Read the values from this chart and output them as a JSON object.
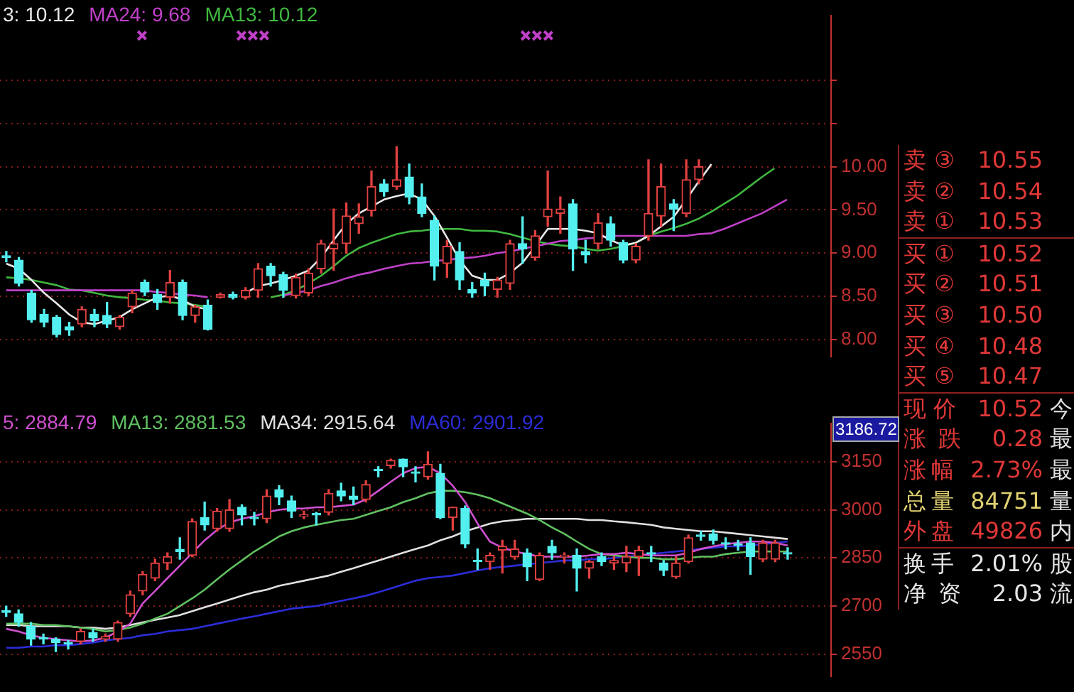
{
  "chart_data": [
    {
      "type": "candlestick",
      "categories": [
        null,
        null,
        null,
        null,
        null,
        null,
        null,
        null,
        null,
        null,
        null,
        null,
        null,
        null,
        null,
        null,
        null,
        null,
        null,
        null,
        null,
        null,
        null,
        null,
        null,
        null,
        null,
        null,
        null,
        null,
        null,
        null,
        null,
        null,
        null,
        null,
        null,
        null,
        null,
        null,
        null,
        null,
        null,
        null,
        null,
        null,
        null,
        null,
        null,
        null,
        null,
        null,
        null,
        null,
        null,
        null,
        null,
        null,
        null,
        null,
        null,
        null,
        null,
        null,
        null,
        null
      ],
      "ohlc": [
        [
          8.97,
          9.02,
          8.9,
          8.95
        ],
        [
          8.92,
          8.95,
          8.62,
          8.65
        ],
        [
          8.54,
          8.57,
          8.2,
          8.23
        ],
        [
          8.29,
          8.35,
          8.15,
          8.2
        ],
        [
          8.26,
          8.28,
          8.03,
          8.06
        ],
        [
          8.15,
          8.2,
          8.05,
          8.11
        ],
        [
          8.18,
          8.38,
          8.15,
          8.35
        ],
        [
          8.29,
          8.35,
          8.15,
          8.22
        ],
        [
          8.28,
          8.43,
          8.14,
          8.18
        ],
        [
          8.15,
          8.28,
          8.12,
          8.26
        ],
        [
          8.38,
          8.57,
          8.31,
          8.54
        ],
        [
          8.66,
          8.69,
          8.51,
          8.55
        ],
        [
          8.52,
          8.58,
          8.35,
          8.43
        ],
        [
          8.49,
          8.8,
          8.42,
          8.66
        ],
        [
          8.66,
          8.69,
          8.23,
          8.28
        ],
        [
          8.28,
          8.4,
          8.2,
          8.38
        ],
        [
          8.4,
          8.46,
          8.11,
          8.12
        ],
        [
          8.49,
          8.54,
          8.48,
          8.52
        ],
        [
          8.52,
          8.55,
          8.47,
          8.49
        ],
        [
          8.49,
          8.6,
          8.47,
          8.57
        ],
        [
          8.57,
          8.88,
          8.49,
          8.82
        ],
        [
          8.85,
          8.88,
          8.62,
          8.74
        ],
        [
          8.75,
          8.78,
          8.49,
          8.57
        ],
        [
          8.51,
          8.76,
          8.48,
          8.72
        ],
        [
          8.54,
          8.82,
          8.51,
          8.77
        ],
        [
          8.82,
          9.15,
          8.77,
          9.11
        ],
        [
          9.05,
          9.51,
          8.8,
          9.11
        ],
        [
          9.11,
          9.58,
          9.0,
          9.43
        ],
        [
          9.34,
          9.57,
          9.23,
          9.42
        ],
        [
          9.49,
          9.95,
          9.43,
          9.77
        ],
        [
          9.8,
          9.85,
          9.66,
          9.71
        ],
        [
          9.77,
          10.23,
          9.74,
          9.85
        ],
        [
          9.88,
          10.03,
          9.57,
          9.65
        ],
        [
          9.65,
          9.8,
          9.42,
          9.46
        ],
        [
          9.38,
          9.43,
          8.69,
          8.85
        ],
        [
          8.88,
          9.15,
          8.72,
          9.08
        ],
        [
          9.02,
          9.12,
          8.58,
          8.69
        ],
        [
          8.58,
          8.66,
          8.49,
          8.54
        ],
        [
          8.69,
          8.77,
          8.51,
          8.62
        ],
        [
          8.58,
          8.72,
          8.49,
          8.69
        ],
        [
          8.65,
          9.15,
          8.58,
          9.11
        ],
        [
          9.11,
          9.42,
          8.88,
          9.05
        ],
        [
          8.95,
          9.26,
          8.92,
          9.2
        ],
        [
          9.42,
          9.95,
          9.31,
          9.51
        ],
        [
          9.46,
          9.65,
          9.23,
          9.51
        ],
        [
          9.57,
          9.62,
          8.8,
          9.05
        ],
        [
          9.02,
          9.15,
          8.89,
          8.98
        ],
        [
          9.11,
          9.46,
          9.05,
          9.35
        ],
        [
          9.34,
          9.42,
          9.08,
          9.15
        ],
        [
          9.12,
          9.15,
          8.89,
          8.92
        ],
        [
          8.92,
          9.11,
          8.89,
          9.08
        ],
        [
          9.2,
          10.08,
          9.15,
          9.46
        ],
        [
          9.43,
          10.03,
          9.31,
          9.77
        ],
        [
          9.57,
          9.62,
          9.26,
          9.51
        ],
        [
          9.46,
          10.08,
          9.42,
          9.85
        ],
        [
          9.85,
          10.08,
          9.8,
          10.0
        ],
        null,
        null,
        null,
        null,
        null,
        null,
        null,
        null,
        null,
        null
      ],
      "series": [
        {
          "name": "3: 10.12",
          "type": "line",
          "color": "#e8e8e8",
          "values": [
            8.88,
            8.82,
            8.69,
            8.54,
            8.42,
            8.29,
            8.2,
            8.18,
            8.22,
            8.26,
            8.35,
            8.42,
            8.49,
            8.51,
            8.46,
            8.38,
            8.35,
            null,
            null,
            8.54,
            8.62,
            8.65,
            8.69,
            8.74,
            8.8,
            8.95,
            9.15,
            9.34,
            9.46,
            9.54,
            9.62,
            9.66,
            9.69,
            9.62,
            9.43,
            9.18,
            8.92,
            8.74,
            8.69,
            8.69,
            8.77,
            8.89,
            9.08,
            9.28,
            9.28,
            9.28,
            9.26,
            9.23,
            9.15,
            9.09,
            9.12,
            9.2,
            9.31,
            9.42,
            9.62,
            9.83,
            10.03,
            null,
            null,
            null,
            null,
            null,
            null,
            null,
            null,
            null
          ]
        },
        {
          "name": "MA24: 9.68",
          "type": "line",
          "color": "#c040c8",
          "values": [
            8.57,
            8.57,
            8.57,
            8.57,
            8.57,
            8.57,
            8.57,
            8.57,
            8.57,
            8.57,
            8.57,
            8.57,
            8.55,
            8.54,
            8.52,
            8.51,
            8.49,
            null,
            null,
            null,
            null,
            null,
            8.51,
            8.54,
            8.57,
            8.62,
            8.66,
            8.71,
            8.75,
            8.78,
            8.82,
            8.85,
            8.88,
            8.89,
            8.91,
            8.92,
            8.94,
            8.95,
            8.97,
            9.0,
            9.02,
            9.05,
            9.08,
            9.11,
            9.14,
            9.15,
            9.17,
            9.18,
            9.2,
            9.2,
            9.2,
            9.2,
            9.2,
            9.2,
            9.2,
            9.22,
            9.23,
            9.28,
            9.34,
            9.4,
            9.46,
            9.54,
            9.62,
            null,
            null,
            null
          ]
        },
        {
          "name": "MA13: 10.12",
          "type": "line",
          "color": "#40b840",
          "values": [
            8.72,
            8.71,
            8.69,
            8.66,
            8.63,
            8.58,
            8.57,
            8.54,
            8.51,
            8.49,
            8.48,
            8.46,
            8.45,
            8.43,
            8.42,
            8.4,
            8.38,
            null,
            null,
            null,
            null,
            8.49,
            8.52,
            8.57,
            8.65,
            8.74,
            8.85,
            8.97,
            9.06,
            9.12,
            9.17,
            9.22,
            9.25,
            9.26,
            9.28,
            9.28,
            9.28,
            9.26,
            9.26,
            9.25,
            9.22,
            9.18,
            9.14,
            9.11,
            9.09,
            9.08,
            9.05,
            9.03,
            9.05,
            9.08,
            9.12,
            9.2,
            9.25,
            9.29,
            9.34,
            9.4,
            9.48,
            9.57,
            9.66,
            9.77,
            9.88,
            9.98,
            null,
            null,
            null,
            null
          ]
        }
      ],
      "ylim": [
        7.8,
        11.75
      ],
      "yticks": [
        {
          "value": 8,
          "label": "8.00"
        },
        {
          "value": 8.5,
          "label": "8.50"
        },
        {
          "value": 9,
          "label": "9.00"
        },
        {
          "value": 9.5,
          "label": "9.50"
        },
        {
          "value": 10,
          "label": "10.00"
        },
        {
          "value": 10.5,
          "label": null
        },
        {
          "value": 11,
          "label": null
        }
      ],
      "grid": "y",
      "legend": "top left",
      "tick_labels": "y"
    },
    {
      "type": "candlestick",
      "categories": [
        null,
        null,
        null,
        null,
        null,
        null,
        null,
        null,
        null,
        null,
        null,
        null,
        null,
        null,
        null,
        null,
        null,
        null,
        null,
        null,
        null,
        null,
        null,
        null,
        null,
        null,
        null,
        null,
        null,
        null,
        null,
        null,
        null,
        null,
        null,
        null,
        null,
        null,
        null,
        null,
        null,
        null,
        null,
        null,
        null,
        null,
        null,
        null,
        null,
        null,
        null,
        null,
        null,
        null,
        null,
        null,
        null,
        null,
        null,
        null,
        null,
        null,
        null,
        null,
        null,
        null,
        null
      ],
      "ohlc": [
        [
          2686,
          2700,
          2668,
          2680
        ],
        [
          2676,
          2688,
          2637,
          2649
        ],
        [
          2637,
          2649,
          2578,
          2597
        ],
        [
          2601,
          2613,
          2582,
          2597
        ],
        [
          2597,
          2601,
          2558,
          2586
        ],
        [
          2586,
          2593,
          2566,
          2582
        ],
        [
          2590,
          2629,
          2582,
          2621
        ],
        [
          2617,
          2629,
          2590,
          2601
        ],
        [
          2597,
          2613,
          2590,
          2605
        ],
        [
          2597,
          2653,
          2590,
          2649
        ],
        [
          2676,
          2747,
          2668,
          2735
        ],
        [
          2747,
          2807,
          2735,
          2799
        ],
        [
          2787,
          2846,
          2779,
          2834
        ],
        [
          2834,
          2866,
          2814,
          2854
        ],
        [
          2877,
          2913,
          2846,
          2870
        ],
        [
          2858,
          2972,
          2854,
          2964
        ],
        [
          2976,
          3024,
          2937,
          2953
        ],
        [
          2941,
          3004,
          2933,
          2996
        ],
        [
          2941,
          3032,
          2933,
          3000
        ],
        [
          3008,
          3016,
          2953,
          2984
        ],
        [
          2976,
          2992,
          2953,
          2972
        ],
        [
          2972,
          3063,
          2960,
          3043
        ],
        [
          3063,
          3075,
          3016,
          3039
        ],
        [
          3028,
          3043,
          2976,
          2996
        ],
        [
          2980,
          2996,
          2972,
          2984
        ],
        [
          2988,
          2992,
          2953,
          2984
        ],
        [
          2992,
          3063,
          2984,
          3051
        ],
        [
          3059,
          3083,
          3028,
          3043
        ],
        [
          3043,
          3071,
          3016,
          3032
        ],
        [
          3032,
          3091,
          3024,
          3079
        ],
        [
          3126,
          3134,
          3103,
          3122
        ],
        [
          3138,
          3158,
          3130,
          3154
        ],
        [
          3158,
          3158,
          3103,
          3134
        ],
        [
          3118,
          3134,
          3087,
          3114
        ],
        [
          3103,
          3181,
          3095,
          3142
        ],
        [
          3114,
          3142,
          2972,
          2976
        ],
        [
          2976,
          3008,
          2937,
          3008
        ],
        [
          3004,
          3012,
          2882,
          2893
        ],
        [
          2842,
          2878,
          2814,
          2838
        ],
        [
          2838,
          2866,
          2814,
          2858
        ],
        [
          2874,
          2905,
          2803,
          2886
        ],
        [
          2854,
          2905,
          2846,
          2878
        ],
        [
          2866,
          2878,
          2779,
          2822
        ],
        [
          2783,
          2866,
          2779,
          2858
        ],
        [
          2886,
          2905,
          2846,
          2866
        ],
        [
          2854,
          2866,
          2834,
          2858
        ],
        [
          2858,
          2878,
          2747,
          2818
        ],
        [
          2818,
          2842,
          2787,
          2838
        ],
        [
          2854,
          2866,
          2826,
          2838
        ],
        [
          2834,
          2854,
          2814,
          2842
        ],
        [
          2834,
          2886,
          2807,
          2854
        ],
        [
          2854,
          2886,
          2795,
          2874
        ],
        [
          2866,
          2886,
          2838,
          2862
        ],
        [
          2834,
          2842,
          2795,
          2811
        ],
        [
          2791,
          2854,
          2787,
          2834
        ],
        [
          2838,
          2921,
          2834,
          2913
        ],
        [
          2921,
          2933,
          2905,
          2917
        ],
        [
          2925,
          2937,
          2893,
          2905
        ],
        [
          2897,
          2913,
          2878,
          2893
        ],
        [
          2893,
          2905,
          2874,
          2889
        ],
        [
          2897,
          2913,
          2799,
          2854
        ],
        [
          2846,
          2905,
          2838,
          2897
        ],
        [
          2846,
          2905,
          2838,
          2897
        ],
        [
          2866,
          2882,
          2846,
          2862
        ],
        null,
        null,
        null
      ],
      "series": [
        {
          "name": "5: 2884.79",
          "type": "line",
          "color": "#d050d0",
          "values": [
            2629,
            2621,
            2609,
            2601,
            2597,
            2593,
            2590,
            2593,
            2601,
            2621,
            2645,
            2708,
            2747,
            2787,
            2826,
            2866,
            2905,
            2937,
            2961,
            2972,
            2980,
            2992,
            3000,
            3004,
            3004,
            3008,
            3008,
            3012,
            3016,
            3032,
            3059,
            3087,
            3114,
            3130,
            3134,
            3114,
            3075,
            3024,
            2957,
            2901,
            2882,
            2870,
            2862,
            2854,
            2854,
            2854,
            2854,
            2858,
            2862,
            2862,
            2866,
            2862,
            2858,
            2858,
            2858,
            2866,
            2878,
            2886,
            2893,
            2897,
            2901,
            2901,
            2897,
            2889,
            null,
            null,
            null
          ]
        },
        {
          "name": "MA13: 2881.53",
          "type": "line",
          "color": "#60c060",
          "values": [
            2645,
            2645,
            2645,
            2641,
            2641,
            2637,
            2633,
            2629,
            2621,
            2625,
            2633,
            2645,
            2661,
            2676,
            2700,
            2724,
            2751,
            2783,
            2814,
            2842,
            2870,
            2893,
            2917,
            2933,
            2945,
            2953,
            2961,
            2968,
            2972,
            2984,
            2996,
            3008,
            3024,
            3036,
            3051,
            3059,
            3059,
            3055,
            3047,
            3036,
            3020,
            3004,
            2988,
            2968,
            2945,
            2925,
            2901,
            2878,
            2862,
            2858,
            2854,
            2850,
            2850,
            2846,
            2846,
            2850,
            2854,
            2854,
            2862,
            2866,
            2870,
            2870,
            2870,
            2870,
            null,
            null,
            null
          ]
        },
        {
          "name": "MA34: 2915.64",
          "type": "line",
          "color": "#e0e0e0",
          "values": [
            2641,
            2641,
            2637,
            2637,
            2637,
            2637,
            2633,
            2633,
            2629,
            2633,
            2641,
            2649,
            2657,
            2664,
            2672,
            2684,
            2696,
            2708,
            2720,
            2732,
            2743,
            2751,
            2763,
            2771,
            2779,
            2787,
            2795,
            2807,
            2818,
            2830,
            2842,
            2854,
            2866,
            2878,
            2889,
            2905,
            2917,
            2933,
            2945,
            2957,
            2964,
            2968,
            2972,
            2972,
            2972,
            2972,
            2972,
            2968,
            2968,
            2964,
            2961,
            2957,
            2953,
            2945,
            2941,
            2937,
            2933,
            2933,
            2929,
            2925,
            2921,
            2917,
            2913,
            2909,
            null,
            null,
            null
          ]
        },
        {
          "name": "MA60: 2901.92",
          "type": "line",
          "color": "#2c2cd8",
          "values": [
            2570,
            2570,
            2574,
            2574,
            2578,
            2578,
            2582,
            2586,
            2593,
            2597,
            2601,
            2609,
            2613,
            2621,
            2625,
            2629,
            2637,
            2645,
            2653,
            2661,
            2668,
            2676,
            2684,
            2692,
            2696,
            2700,
            2708,
            2716,
            2724,
            2732,
            2743,
            2755,
            2767,
            2779,
            2787,
            2791,
            2795,
            2803,
            2811,
            2818,
            2822,
            2826,
            2830,
            2834,
            2838,
            2842,
            2842,
            2846,
            2846,
            2850,
            2854,
            2858,
            2862,
            2866,
            2870,
            2874,
            2878,
            2882,
            2886,
            2886,
            2889,
            2893,
            2897,
            2901,
            null,
            null,
            null
          ]
        }
      ],
      "ylim": [
        2480,
        3270
      ],
      "yticks": [
        2550,
        2700,
        2850,
        3000,
        3150
      ],
      "annotations": [
        "3186.72"
      ],
      "grid": "y",
      "legend": "top left",
      "tick_labels": "y"
    },
    {
      "type": "other",
      "categories": [
        "卖③",
        "卖②",
        "卖①",
        "买①",
        "买②",
        "买③",
        "买④",
        "买⑤",
        "现价",
        "涨跌",
        "涨幅",
        "总量",
        "外盘",
        "换手",
        "净资"
      ],
      "value_labels": [
        "10.55",
        "10.54",
        "10.53",
        "10.52",
        "10.51",
        "10.50",
        "10.48",
        "10.47",
        "10.52",
        "0.28",
        "2.73%",
        "84751",
        "49826",
        "2.01%",
        "2.03"
      ],
      "y2_categories": [
        null,
        null,
        null,
        null,
        null,
        null,
        null,
        null,
        "今",
        "最",
        "最",
        "量",
        "内",
        "股",
        "流"
      ],
      "colors": [
        "#e03838",
        "#e03838",
        "#e03838",
        "#e03838",
        "#e03838",
        "#e03838",
        "#e03838",
        "#e03838",
        "#e03838",
        "#e03838",
        "#e03838",
        "#e0d070",
        "#e03838",
        "#e6e6e6",
        "#e6e6e6"
      ]
    }
  ]
}
